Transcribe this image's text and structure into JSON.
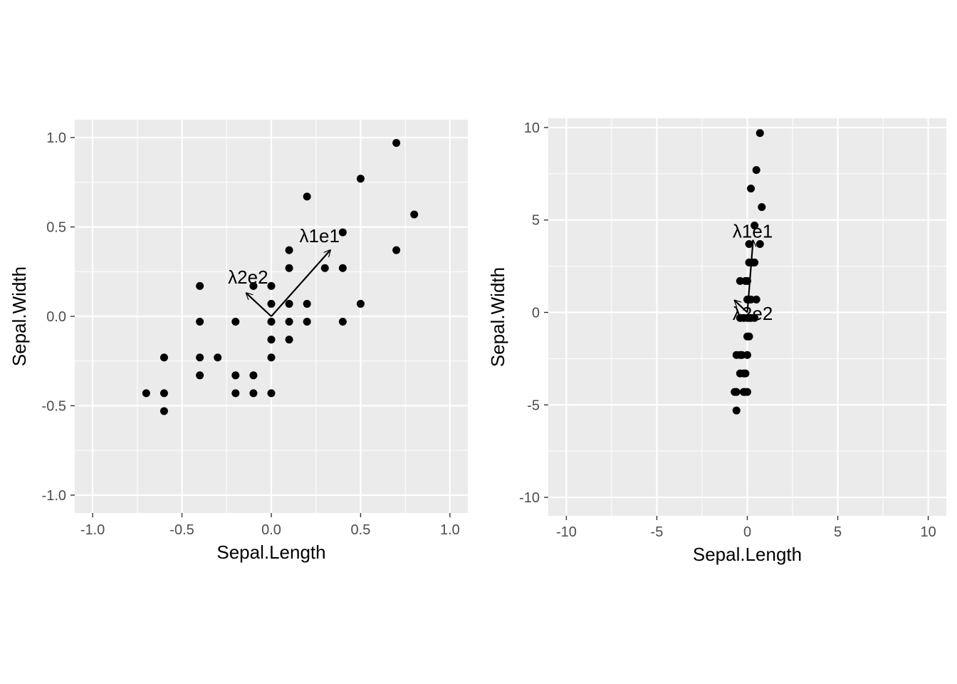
{
  "chart_data": [
    {
      "type": "scatter",
      "xlabel": "Sepal.Length",
      "ylabel": "Sepal.Width",
      "xlim": [
        -1.1,
        1.1
      ],
      "ylim": [
        -1.1,
        1.1
      ],
      "x_ticks": [
        -1.0,
        -0.5,
        0.0,
        0.5,
        1.0
      ],
      "y_ticks": [
        -1.0,
        -0.5,
        0.0,
        0.5,
        1.0
      ],
      "x_tick_labels": [
        "-1.0",
        "-0.5",
        "0.0",
        "0.5",
        "1.0"
      ],
      "y_tick_labels": [
        "-1.0",
        "-0.5",
        "0.0",
        "0.5",
        "1.0"
      ],
      "grid": true,
      "points": [
        {
          "x": 0.7,
          "y": 0.97
        },
        {
          "x": 0.5,
          "y": 0.77
        },
        {
          "x": 0.2,
          "y": 0.67
        },
        {
          "x": 0.8,
          "y": 0.57
        },
        {
          "x": 0.4,
          "y": 0.47
        },
        {
          "x": 0.1,
          "y": 0.37
        },
        {
          "x": 0.7,
          "y": 0.37
        },
        {
          "x": 0.1,
          "y": 0.27
        },
        {
          "x": 0.3,
          "y": 0.27
        },
        {
          "x": 0.4,
          "y": 0.27
        },
        {
          "x": -0.4,
          "y": 0.17
        },
        {
          "x": -0.1,
          "y": 0.17
        },
        {
          "x": 0.0,
          "y": 0.17
        },
        {
          "x": 0.0,
          "y": 0.07
        },
        {
          "x": 0.1,
          "y": 0.07
        },
        {
          "x": 0.2,
          "y": 0.07
        },
        {
          "x": 0.5,
          "y": 0.07
        },
        {
          "x": -0.4,
          "y": -0.03
        },
        {
          "x": -0.2,
          "y": -0.03
        },
        {
          "x": 0.0,
          "y": -0.03
        },
        {
          "x": 0.1,
          "y": -0.03
        },
        {
          "x": 0.2,
          "y": -0.03
        },
        {
          "x": 0.4,
          "y": -0.03
        },
        {
          "x": 0.0,
          "y": -0.13
        },
        {
          "x": 0.1,
          "y": -0.13
        },
        {
          "x": -0.6,
          "y": -0.23
        },
        {
          "x": -0.4,
          "y": -0.23
        },
        {
          "x": -0.3,
          "y": -0.23
        },
        {
          "x": 0.0,
          "y": -0.23
        },
        {
          "x": -0.4,
          "y": -0.33
        },
        {
          "x": -0.2,
          "y": -0.33
        },
        {
          "x": -0.1,
          "y": -0.33
        },
        {
          "x": -0.7,
          "y": -0.43
        },
        {
          "x": -0.6,
          "y": -0.43
        },
        {
          "x": -0.2,
          "y": -0.43
        },
        {
          "x": -0.1,
          "y": -0.43
        },
        {
          "x": 0.0,
          "y": -0.43
        },
        {
          "x": -0.6,
          "y": -0.53
        }
      ],
      "vectors": [
        {
          "label": "λ1e1",
          "x": 0.33,
          "y": 0.37,
          "label_x": 0.27,
          "label_y": 0.45
        },
        {
          "label": "λ2e2",
          "x": -0.14,
          "y": 0.13,
          "label_x": -0.13,
          "label_y": 0.22
        }
      ]
    },
    {
      "type": "scatter",
      "xlabel": "Sepal.Length",
      "ylabel": "Sepal.Width",
      "xlim": [
        -11,
        11
      ],
      "ylim": [
        -11,
        10.5
      ],
      "x_ticks": [
        -10,
        -5,
        0,
        5,
        10
      ],
      "y_ticks": [
        -10,
        -5,
        0,
        5,
        10
      ],
      "x_tick_labels": [
        "-10",
        "-5",
        "0",
        "5",
        "10"
      ],
      "y_tick_labels": [
        "-10",
        "-5",
        "0",
        "5",
        "10"
      ],
      "grid": true,
      "points": [
        {
          "x": 0.7,
          "y": 9.7
        },
        {
          "x": 0.5,
          "y": 7.7
        },
        {
          "x": 0.2,
          "y": 6.7
        },
        {
          "x": 0.8,
          "y": 5.7
        },
        {
          "x": 0.4,
          "y": 4.7
        },
        {
          "x": 0.1,
          "y": 3.7
        },
        {
          "x": 0.7,
          "y": 3.7
        },
        {
          "x": 0.1,
          "y": 2.7
        },
        {
          "x": 0.3,
          "y": 2.7
        },
        {
          "x": 0.4,
          "y": 2.7
        },
        {
          "x": -0.4,
          "y": 1.7
        },
        {
          "x": -0.1,
          "y": 1.7
        },
        {
          "x": 0.0,
          "y": 1.7
        },
        {
          "x": 0.0,
          "y": 0.7
        },
        {
          "x": 0.1,
          "y": 0.7
        },
        {
          "x": 0.2,
          "y": 0.7
        },
        {
          "x": 0.5,
          "y": 0.7
        },
        {
          "x": -0.4,
          "y": -0.3
        },
        {
          "x": -0.2,
          "y": -0.3
        },
        {
          "x": 0.0,
          "y": -0.3
        },
        {
          "x": 0.1,
          "y": -0.3
        },
        {
          "x": 0.2,
          "y": -0.3
        },
        {
          "x": 0.4,
          "y": -0.3
        },
        {
          "x": 0.0,
          "y": -1.3
        },
        {
          "x": 0.1,
          "y": -1.3
        },
        {
          "x": -0.6,
          "y": -2.3
        },
        {
          "x": -0.4,
          "y": -2.3
        },
        {
          "x": -0.3,
          "y": -2.3
        },
        {
          "x": 0.0,
          "y": -2.3
        },
        {
          "x": -0.4,
          "y": -3.3
        },
        {
          "x": -0.2,
          "y": -3.3
        },
        {
          "x": -0.1,
          "y": -3.3
        },
        {
          "x": -0.7,
          "y": -4.3
        },
        {
          "x": -0.6,
          "y": -4.3
        },
        {
          "x": -0.2,
          "y": -4.3
        },
        {
          "x": -0.1,
          "y": -4.3
        },
        {
          "x": 0.0,
          "y": -4.3
        },
        {
          "x": -0.6,
          "y": -5.3
        }
      ],
      "vectors": [
        {
          "label": "λ1e1",
          "x": 0.32,
          "y": 3.9,
          "label_x": 0.3,
          "label_y": 4.4
        },
        {
          "label": "λ2e2",
          "x": -0.7,
          "y": 0.65,
          "label_x": 0.3,
          "label_y": -0.05
        }
      ]
    }
  ]
}
